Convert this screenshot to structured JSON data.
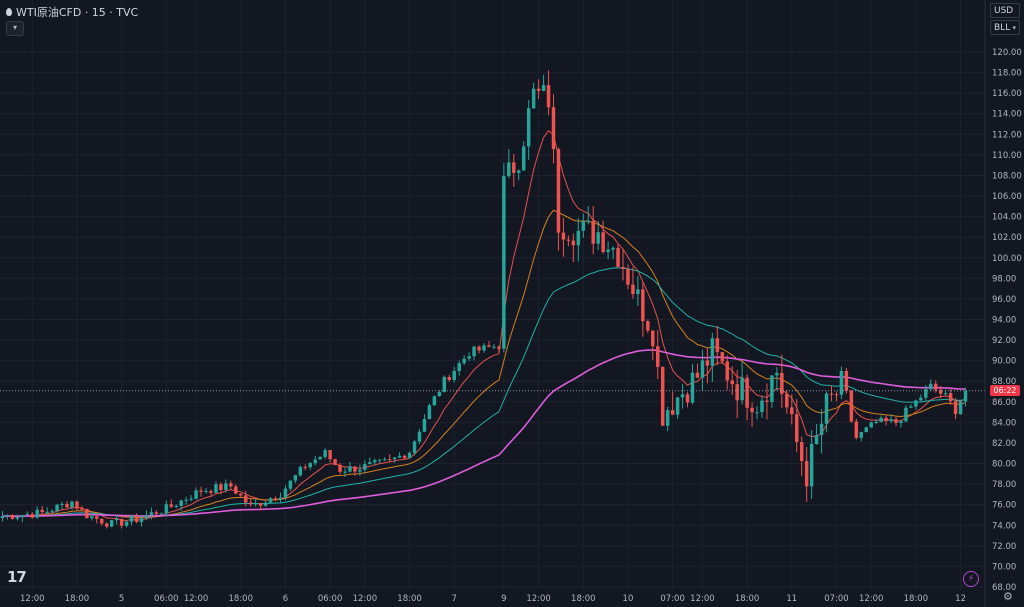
{
  "header": {
    "title": "WTI原油CFD · 15 · TVC"
  },
  "controls": {
    "currency": "USD",
    "unit": "BLL"
  },
  "last_price_tag": "06:22",
  "chart_data": {
    "type": "candlestick",
    "y_axis": {
      "range": [
        68,
        122
      ],
      "ticks": [
        "68.00",
        "70.00",
        "72.00",
        "74.00",
        "76.00",
        "78.00",
        "80.00",
        "82.00",
        "84.00",
        "86.00",
        "88.00",
        "90.00",
        "92.00",
        "94.00",
        "96.00",
        "98.00",
        "100.00",
        "102.00",
        "104.00",
        "106.00",
        "108.00",
        "110.00",
        "112.00",
        "114.00",
        "116.00",
        "118.00",
        "120.00"
      ]
    },
    "x_axis": {
      "ticks": [
        {
          "label": "12:00",
          "index": 6
        },
        {
          "label": "18:00",
          "index": 15
        },
        {
          "label": "5",
          "index": 24
        },
        {
          "label": "06:00",
          "index": 33
        },
        {
          "label": "12:00",
          "index": 39
        },
        {
          "label": "18:00",
          "index": 48
        },
        {
          "label": "6",
          "index": 57
        },
        {
          "label": "06:00",
          "index": 66
        },
        {
          "label": "12:00",
          "index": 73
        },
        {
          "label": "18:00",
          "index": 82
        },
        {
          "label": "7",
          "index": 91
        },
        {
          "label": "9",
          "index": 101
        },
        {
          "label": "12:00",
          "index": 108
        },
        {
          "label": "18:00",
          "index": 117
        },
        {
          "label": "10",
          "index": 126
        },
        {
          "label": "07:00",
          "index": 135
        },
        {
          "label": "12:00",
          "index": 141
        },
        {
          "label": "18:00",
          "index": 150
        },
        {
          "label": "11",
          "index": 159
        },
        {
          "label": "07:00",
          "index": 168
        },
        {
          "label": "12:00",
          "index": 175
        },
        {
          "label": "18:00",
          "index": 184
        },
        {
          "label": "12",
          "index": 193
        }
      ]
    },
    "series_count": 195,
    "close_anchors": [
      [
        0,
        74.9
      ],
      [
        8,
        75.2
      ],
      [
        14,
        76.3
      ],
      [
        17,
        75.0
      ],
      [
        22,
        74.1
      ],
      [
        27,
        74.6
      ],
      [
        33,
        75.6
      ],
      [
        40,
        77.4
      ],
      [
        46,
        77.8
      ],
      [
        50,
        75.8
      ],
      [
        56,
        77.1
      ],
      [
        61,
        79.8
      ],
      [
        65,
        81.0
      ],
      [
        68,
        79.4
      ],
      [
        72,
        79.6
      ],
      [
        78,
        80.2
      ],
      [
        82,
        81.2
      ],
      [
        86,
        85.5
      ],
      [
        89,
        88.0
      ],
      [
        94,
        90.8
      ],
      [
        100,
        91.5
      ],
      [
        101,
        107.0
      ],
      [
        104,
        110.0
      ],
      [
        107,
        115.8
      ],
      [
        110,
        115.5
      ],
      [
        112,
        103.5
      ],
      [
        116,
        102.5
      ],
      [
        120,
        102.5
      ],
      [
        124,
        100.5
      ],
      [
        128,
        96.0
      ],
      [
        131,
        93.0
      ],
      [
        133,
        85.0
      ],
      [
        136,
        86.5
      ],
      [
        140,
        88.5
      ],
      [
        143,
        90.8
      ],
      [
        148,
        87.5
      ],
      [
        152,
        86.0
      ],
      [
        156,
        89.0
      ],
      [
        159,
        83.5
      ],
      [
        162,
        79.0
      ],
      [
        166,
        85.5
      ],
      [
        169,
        87.5
      ],
      [
        172,
        82.5
      ],
      [
        176,
        84.0
      ],
      [
        180,
        84.0
      ],
      [
        184,
        86.0
      ],
      [
        187,
        87.5
      ],
      [
        190,
        86.5
      ],
      [
        192,
        85.2
      ],
      [
        194,
        87.1
      ]
    ],
    "moving_averages": [
      {
        "color": "#e8504c",
        "period": 8
      },
      {
        "color": "#d7801e",
        "period": 20
      },
      {
        "color": "#21b0a6",
        "period": 40
      },
      {
        "color": "#dd5ddd",
        "period": 100
      }
    ],
    "up_color": "#26a69a",
    "down_color": "#ef5350"
  }
}
